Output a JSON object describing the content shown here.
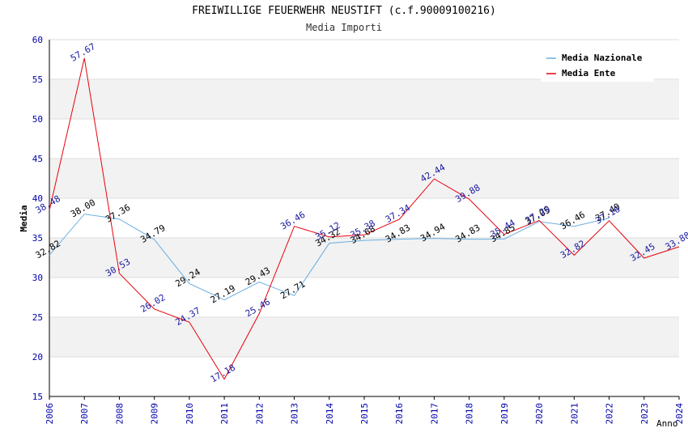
{
  "chart_data": {
    "type": "line",
    "title": "FREIWILLIGE FEUERWEHR NEUSTIFT (c.f.90009100216)",
    "subtitle": "Media Importi",
    "xlabel": "Anno",
    "ylabel": "Media",
    "ylim": [
      15,
      60
    ],
    "yticks": [
      "15",
      "20",
      "25",
      "30",
      "35",
      "40",
      "45",
      "50",
      "55",
      "60"
    ],
    "x": [
      "2006",
      "2007",
      "2008",
      "2009",
      "2010",
      "2011",
      "2012",
      "2013",
      "2014",
      "2015",
      "2016",
      "2017",
      "2018",
      "2019",
      "2020",
      "2021",
      "2022",
      "2023",
      "2024"
    ],
    "series": [
      {
        "name": "Media Nazionale",
        "color": "#6aaee0",
        "label_color": "#000000",
        "values": [
          32.82,
          38.0,
          37.36,
          34.79,
          29.24,
          27.19,
          29.43,
          27.71,
          34.32,
          34.68,
          34.83,
          34.94,
          34.83,
          34.85,
          37.05,
          36.46,
          37.49,
          null,
          null
        ],
        "labels": [
          "32.82",
          "38.00",
          "37.36",
          "34.79",
          "29.24",
          "27.19",
          "29.43",
          "27.71",
          "34.32",
          "34.68",
          "34.83",
          "34.94",
          "34.83",
          "34.85",
          "37.05",
          "36.46",
          "37.49",
          "",
          ""
        ]
      },
      {
        "name": "Media Ente",
        "color": "#e8000b",
        "label_color": "#1a1aa0",
        "values": [
          38.48,
          57.67,
          30.53,
          26.02,
          24.37,
          17.18,
          25.46,
          36.46,
          35.12,
          35.38,
          37.34,
          42.44,
          39.88,
          35.44,
          37.2,
          32.82,
          37.16,
          32.45,
          33.88
        ],
        "labels": [
          "38.48",
          "57.67",
          "30.53",
          "26.02",
          "24.37",
          "17.18",
          "25.46",
          "36.46",
          "35.12",
          "35.38",
          "37.34",
          "42.44",
          "39.88",
          "35.44",
          "37.20",
          "32.82",
          "37.16",
          "32.45",
          "33.88"
        ]
      }
    ],
    "legend_position": "top-right",
    "colors": {
      "axis_tick": "#0000aa",
      "band": "#f2f2f2",
      "grid": "#dddddd"
    }
  }
}
